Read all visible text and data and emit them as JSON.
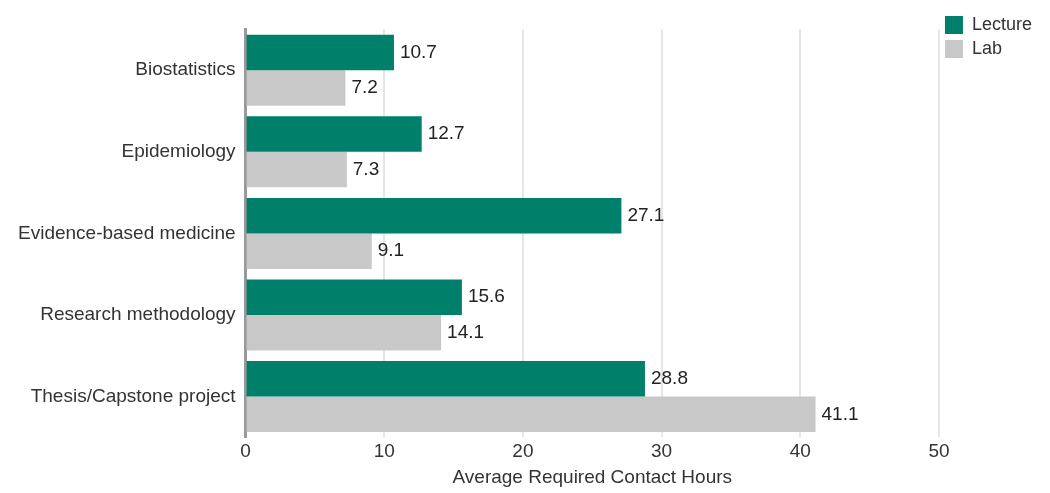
{
  "chart_data": {
    "type": "bar",
    "orientation": "horizontal",
    "xlabel": "Average Required Contact Hours",
    "categories": [
      "Biostatistics",
      "Epidemiology",
      "Evidence-based medicine",
      "Research methodology",
      "Thesis/Capstone project"
    ],
    "series": [
      {
        "name": "Lecture",
        "color": "#00806a",
        "values": [
          10.7,
          12.7,
          27.1,
          15.6,
          28.8
        ]
      },
      {
        "name": "Lab",
        "color": "#c8c8c8",
        "values": [
          7.2,
          7.3,
          9.1,
          14.1,
          41.1
        ]
      }
    ],
    "xlim": [
      0,
      50
    ],
    "xticks": [
      0,
      10,
      20,
      30,
      40,
      50
    ],
    "grid": "x",
    "legend": "top right",
    "data_labels": true
  }
}
